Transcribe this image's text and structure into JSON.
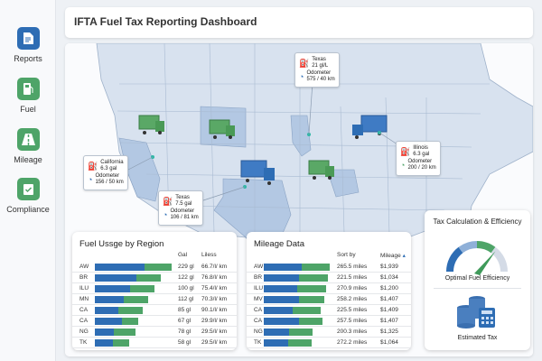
{
  "sidebar": {
    "items": [
      {
        "label": "Reports",
        "icon": "document-icon",
        "color": "#2e6db4"
      },
      {
        "label": "Fuel",
        "icon": "fuel-pump-icon",
        "color": "#4ea468"
      },
      {
        "label": "Mileage",
        "icon": "road-icon",
        "color": "#4ea468"
      },
      {
        "label": "Compliance",
        "icon": "clipboard-check-icon",
        "color": "#4ea468"
      }
    ]
  },
  "header": {
    "title": "IFTA Fuel Tax Reporting Dashboard"
  },
  "map": {
    "callouts": [
      {
        "state": "California",
        "fuel": "6.3 gal",
        "odo_label": "Odometer",
        "odo": "156 / 50 km",
        "color": "#2e6db4"
      },
      {
        "state": "Texas",
        "fuel": "7.5 gal",
        "odo_label": "Odometer",
        "odo": "106 / 81 km",
        "color": "#2e6db4"
      },
      {
        "state": "Texas",
        "fuel": "21 gl/L",
        "odo_label": "Odometer",
        "odo": "575 / 40 km",
        "color": "#2e6db4"
      },
      {
        "state": "Illinois",
        "fuel": "6.3 gal",
        "odo_label": "Odometer",
        "odo": "200 / 20 km",
        "color": "#4ea468"
      }
    ]
  },
  "fuel_usage": {
    "title": "Fuel Ussge by Region",
    "col1": "Gal",
    "col2": "Liless",
    "rows": [
      {
        "region": "AW",
        "gal": "229 gl",
        "rate": "66.7/l/ km",
        "blue": 0.65,
        "green": 0.35
      },
      {
        "region": "BR",
        "gal": "122 gl",
        "rate": "76.8/l/ km",
        "blue": 0.54,
        "green": 0.32
      },
      {
        "region": "ILU",
        "gal": "100 gl",
        "rate": "75.4/l/ km",
        "blue": 0.46,
        "green": 0.32
      },
      {
        "region": "MN",
        "gal": "112 gl",
        "rate": "70.3/l/ km",
        "blue": 0.38,
        "green": 0.32
      },
      {
        "region": "CA",
        "gal": "85 gl",
        "rate": "90.1/l/ km",
        "blue": 0.31,
        "green": 0.31
      },
      {
        "region": "CA",
        "gal": "67 gl",
        "rate": "29.9/l/ km",
        "blue": 0.35,
        "green": 0.22
      },
      {
        "region": "NG",
        "gal": "78 gl",
        "rate": "29.5/l/ km",
        "blue": 0.25,
        "green": 0.28
      },
      {
        "region": "TK",
        "gal": "58 gl",
        "rate": "29.5/l/ km",
        "blue": 0.23,
        "green": 0.22
      }
    ]
  },
  "mileage": {
    "title": "Mileage Data",
    "col1": "Sort by",
    "col2": "Mileage",
    "sort_icon": "sort-arrow-icon",
    "rows": [
      {
        "region": "AW",
        "miles": "265.5 miles",
        "amount": "$1,939",
        "blue": 0.57,
        "green": 0.43
      },
      {
        "region": "BR",
        "miles": "221.5 miles",
        "amount": "$1,034",
        "blue": 0.54,
        "green": 0.43
      },
      {
        "region": "ILU",
        "miles": "270.9 miles",
        "amount": "$1,200",
        "blue": 0.51,
        "green": 0.44
      },
      {
        "region": "MV",
        "miles": "258.2 miles",
        "amount": "$1,407",
        "blue": 0.53,
        "green": 0.39
      },
      {
        "region": "CA",
        "miles": "225.5 miles",
        "amount": "$1,409",
        "blue": 0.44,
        "green": 0.42
      },
      {
        "region": "CA",
        "miles": "257.5 miles",
        "amount": "$1,407",
        "blue": 0.54,
        "green": 0.35
      },
      {
        "region": "NG",
        "miles": "200.3 miles",
        "amount": "$1,325",
        "blue": 0.38,
        "green": 0.36
      },
      {
        "region": "TK",
        "miles": "272.2 miles",
        "amount": "$1,064",
        "blue": 0.37,
        "green": 0.35
      }
    ]
  },
  "tax": {
    "title": "Tax Calculation & Efficiency",
    "gauge_label": "Optimal Fuel Efficiency",
    "gauge_level": 0.72,
    "estimate_label": "Estimated Tax"
  }
}
